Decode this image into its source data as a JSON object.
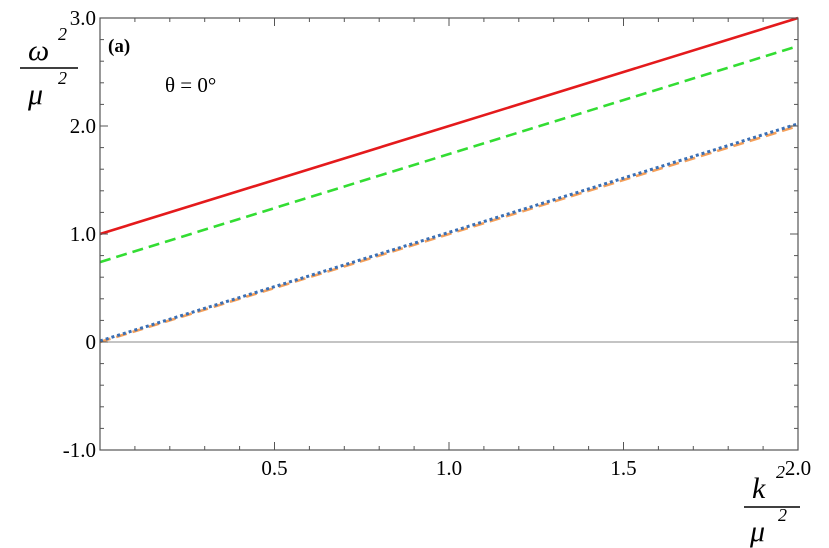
{
  "chart_data": {
    "type": "line",
    "panel_label": "(a)",
    "annotation": "θ = 0°",
    "xlabel": {
      "symbol": "k",
      "power": "2",
      "denominator": "μ",
      "den_power": "2"
    },
    "ylabel": {
      "symbol": "ω",
      "power": "2",
      "denominator": "μ",
      "den_power": "2"
    },
    "xlim": [
      0,
      2.0
    ],
    "ylim": [
      -1.0,
      3.0
    ],
    "x_ticks": [
      {
        "value": 0.5,
        "label": "0.5"
      },
      {
        "value": 1.0,
        "label": "1.0"
      },
      {
        "value": 1.5,
        "label": "1.5"
      },
      {
        "value": 2.0,
        "label": "2.0"
      }
    ],
    "y_ticks": [
      {
        "value": -1.0,
        "label": "-1.0"
      },
      {
        "value": 0,
        "label": "0"
      },
      {
        "value": 1.0,
        "label": "1.0"
      },
      {
        "value": 2.0,
        "label": "2.0"
      },
      {
        "value": 3.0,
        "label": "3.0"
      }
    ],
    "zero_line": true,
    "series": [
      {
        "color": "#e41a1c",
        "dash": "solid",
        "x": [
          0,
          2.0
        ],
        "y": [
          1.0,
          3.0
        ]
      },
      {
        "color": "#33dd33",
        "dash": "dashed",
        "x": [
          0,
          2.0
        ],
        "y": [
          0.74,
          2.74
        ]
      },
      {
        "color": "#f5a05a",
        "dash": "dashed",
        "x": [
          0,
          2.0
        ],
        "y": [
          0.0,
          2.0
        ]
      },
      {
        "color": "#3a6fb5",
        "dash": "dotted",
        "x": [
          0,
          2.0
        ],
        "y": [
          0.01,
          2.02
        ]
      }
    ]
  }
}
